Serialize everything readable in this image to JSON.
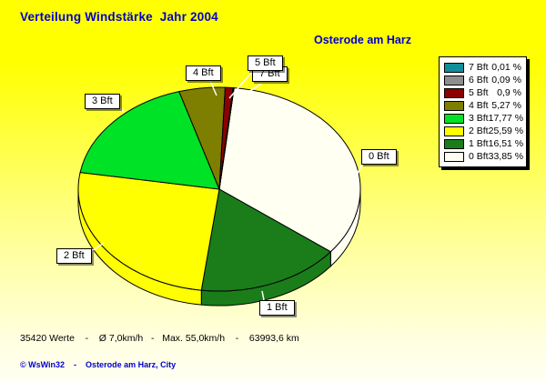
{
  "title": "Verteilung Windstärke  Jahr 2004",
  "subtitle": "Osterode am Harz",
  "chart_data": {
    "type": "pie",
    "style": "3d",
    "title": "Verteilung Windstärke  Jahr 2004",
    "subtitle": "Osterode am Harz",
    "unit": "%",
    "start_angle_deg": 6,
    "clockwise": true,
    "legend_position": "top-right",
    "legend_order_top_to_bottom": [
      "7 Bft",
      "6 Bft",
      "5 Bft",
      "4 Bft",
      "3 Bft",
      "2 Bft",
      "1 Bft",
      "0 Bft"
    ],
    "slices": [
      {
        "label": "0 Bft",
        "value": 33.85,
        "pct_text": "33,85 %",
        "color": "#fffff2"
      },
      {
        "label": "1 Bft",
        "value": 16.51,
        "pct_text": "16,51 %",
        "color": "#1a7d1a"
      },
      {
        "label": "2 Bft",
        "value": 25.59,
        "pct_text": "25,59 %",
        "color": "#ffff00"
      },
      {
        "label": "3 Bft",
        "value": 17.77,
        "pct_text": "17,77 %",
        "color": "#00e226"
      },
      {
        "label": "4 Bft",
        "value": 5.27,
        "pct_text": "5,27 %",
        "color": "#7e7e00"
      },
      {
        "label": "5 Bft",
        "value": 0.9,
        "pct_text": "0,9 %",
        "color": "#8b0000"
      },
      {
        "label": "6 Bft",
        "value": 0.09,
        "pct_text": "0,09 %",
        "color": "#8e8e8e"
      },
      {
        "label": "7 Bft",
        "value": 0.01,
        "pct_text": "0,01 %",
        "color": "#128e9a"
      }
    ]
  },
  "callouts": [
    {
      "label": "4 Bft"
    },
    {
      "label": "5 Bft"
    },
    {
      "label": "7 Bft"
    },
    {
      "label": "3 Bft"
    },
    {
      "label": "0 Bft"
    },
    {
      "label": "2 Bft"
    },
    {
      "label": "1 Bft"
    }
  ],
  "status_line": {
    "values_count": "35420 Werte",
    "average": "Ø 7,0km/h",
    "maximum": "Max. 55,0km/h",
    "distance": "63993,6 km",
    "text": "35420 Werte    -    Ø 7,0km/h   -   Max. 55,0km/h    -    63993,6 km"
  },
  "footer": {
    "text": "© WsWin32    -    Osterode am Harz, City"
  },
  "colors": {
    "background_top": "#ffff00",
    "background_bottom": "#fffff4",
    "heading_text": "#0000cc",
    "outline": "#000000",
    "leader_line": "#ffffff"
  }
}
